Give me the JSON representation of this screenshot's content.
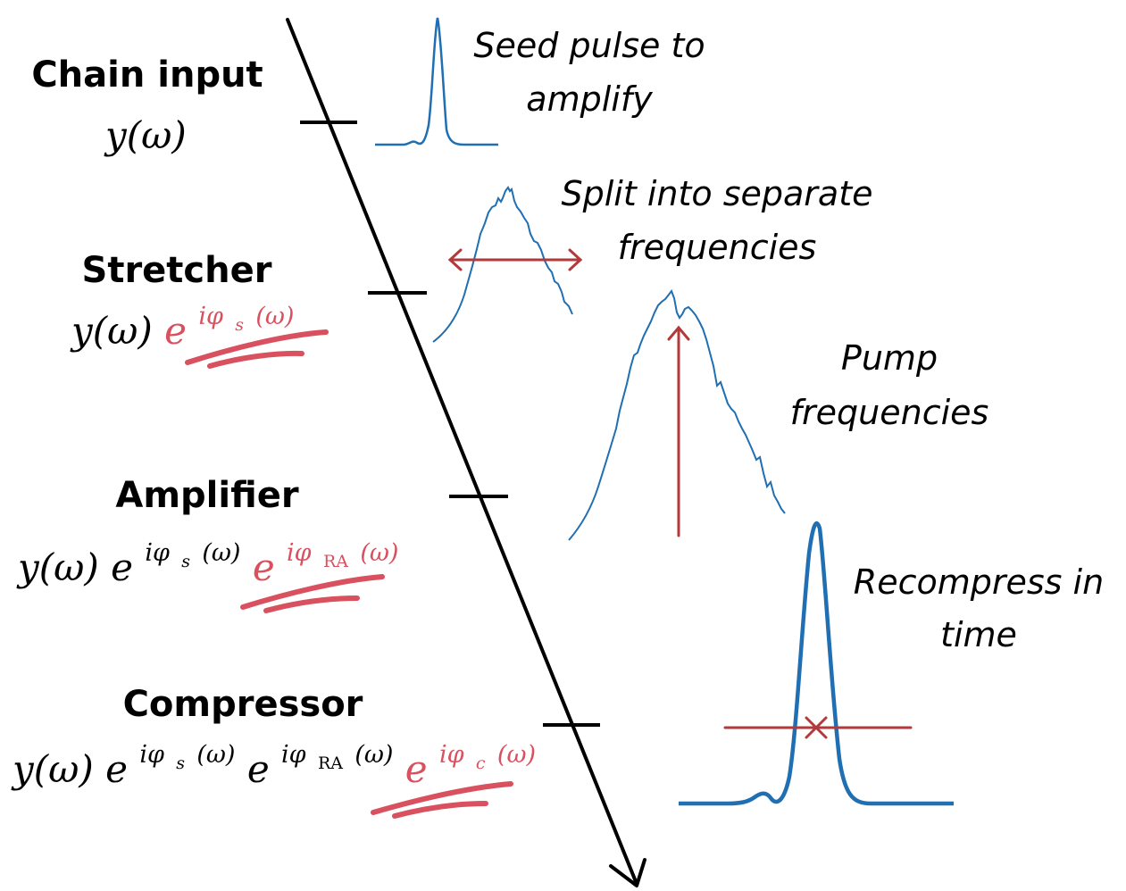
{
  "stages": [
    {
      "title": "Chain input",
      "base": "y(ω)",
      "terms": []
    },
    {
      "title": "Stretcher",
      "base": "y(ω)",
      "terms": [
        {
          "e": "e",
          "sup": "iφ",
          "sub": "s",
          "arg": "(ω)",
          "highlight": true
        }
      ]
    },
    {
      "title": "Amplifier",
      "base": "y(ω)",
      "terms": [
        {
          "e": "e",
          "sup": "iφ",
          "sub": "s",
          "arg": "(ω)",
          "highlight": false
        },
        {
          "e": "e",
          "sup": "iφ",
          "sub": "RA",
          "arg": "(ω)",
          "highlight": true
        }
      ]
    },
    {
      "title": "Compressor",
      "base": "y(ω)",
      "terms": [
        {
          "e": "e",
          "sup": "iφ",
          "sub": "s",
          "arg": "(ω)",
          "highlight": false
        },
        {
          "e": "e",
          "sup": "iφ",
          "sub": "RA",
          "arg": "(ω)",
          "highlight": false
        },
        {
          "e": "e",
          "sup": "iφ",
          "sub": "c",
          "arg": "(ω)",
          "highlight": true
        }
      ]
    }
  ],
  "notes": {
    "seed": [
      "Seed pulse to",
      "amplify"
    ],
    "split": [
      "Split into separate",
      "frequencies"
    ],
    "pump": [
      "Pump",
      "frequencies"
    ],
    "recompress": [
      "Recompress in",
      "time"
    ]
  },
  "colors": {
    "axis": "#000000",
    "pulse": "#1f6fb2",
    "highlight": "#d9505f",
    "marker": "#b23a3a"
  }
}
